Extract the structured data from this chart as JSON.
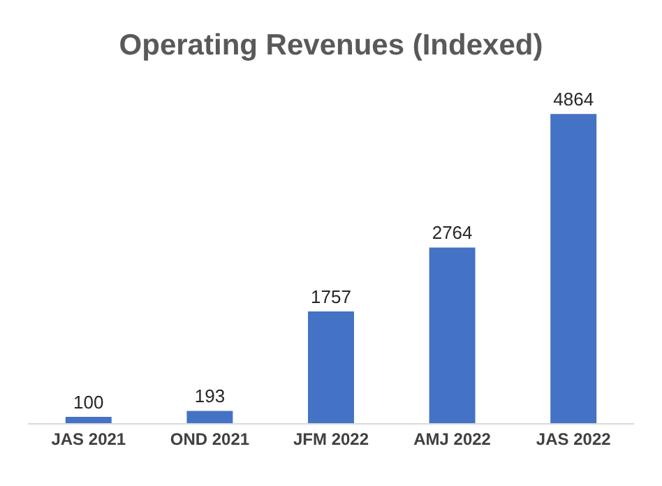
{
  "chart_data": {
    "type": "bar",
    "title": "Operating Revenues (Indexed)",
    "categories": [
      "JAS 2021",
      "OND 2021",
      "JFM 2022",
      "AMJ 2022",
      "JAS 2022"
    ],
    "values": [
      100,
      193,
      1757,
      2764,
      4864
    ],
    "color": "#4472c4",
    "data_labels": true,
    "grid": false
  }
}
